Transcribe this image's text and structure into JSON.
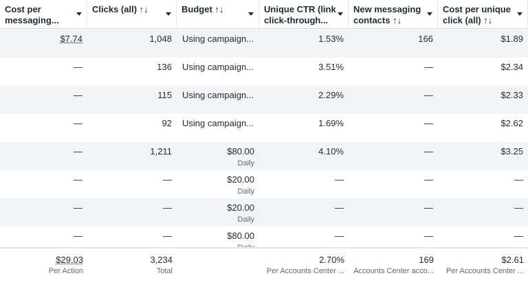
{
  "table": {
    "columns": [
      [
        "Cost per",
        "messaging..."
      ],
      [
        "Clicks (all) ↑↓"
      ],
      [
        "Budget ↑↓"
      ],
      [
        "Unique CTR (link",
        "click-through..."
      ],
      [
        "New messaging",
        "contacts ↑↓"
      ],
      [
        "Cost per unique",
        "click (all) ↑↓"
      ]
    ],
    "rows": [
      [
        "$7.74",
        "1,048",
        "Using campaign...",
        "1.53%",
        "166",
        "$1.89"
      ],
      [
        "—",
        "136",
        "Using campaign...",
        "3.51%",
        "—",
        "$2.34"
      ],
      [
        "—",
        "115",
        "Using campaign...",
        "2.29%",
        "—",
        "$2.33"
      ],
      [
        "—",
        "92",
        "Using campaign...",
        "1.69%",
        "—",
        "$2.62"
      ],
      [
        "—",
        "1,211",
        {
          "text": "$80.00",
          "sub": "Daily"
        },
        "4.10%",
        "—",
        "$3.25"
      ],
      [
        "—",
        "—",
        {
          "text": "$20.00",
          "sub": "Daily"
        },
        "—",
        "—",
        "—"
      ],
      [
        "—",
        "—",
        {
          "text": "$20.00",
          "sub": "Daily"
        },
        "—",
        "—",
        "—"
      ],
      [
        "—",
        "—",
        {
          "text": "$80.00",
          "sub": "Daily"
        },
        "—",
        "—",
        "—"
      ]
    ],
    "footer": [
      {
        "value": "$29.03",
        "label": "Per Action"
      },
      {
        "value": "3,234",
        "label": "Total"
      },
      null,
      {
        "value": "2.70%",
        "label": "Per Accounts Center ..."
      },
      {
        "value": "169",
        "label": "Accounts Center acco..."
      },
      {
        "value": "$2.61",
        "label": "Per Accounts Center ..."
      }
    ]
  }
}
